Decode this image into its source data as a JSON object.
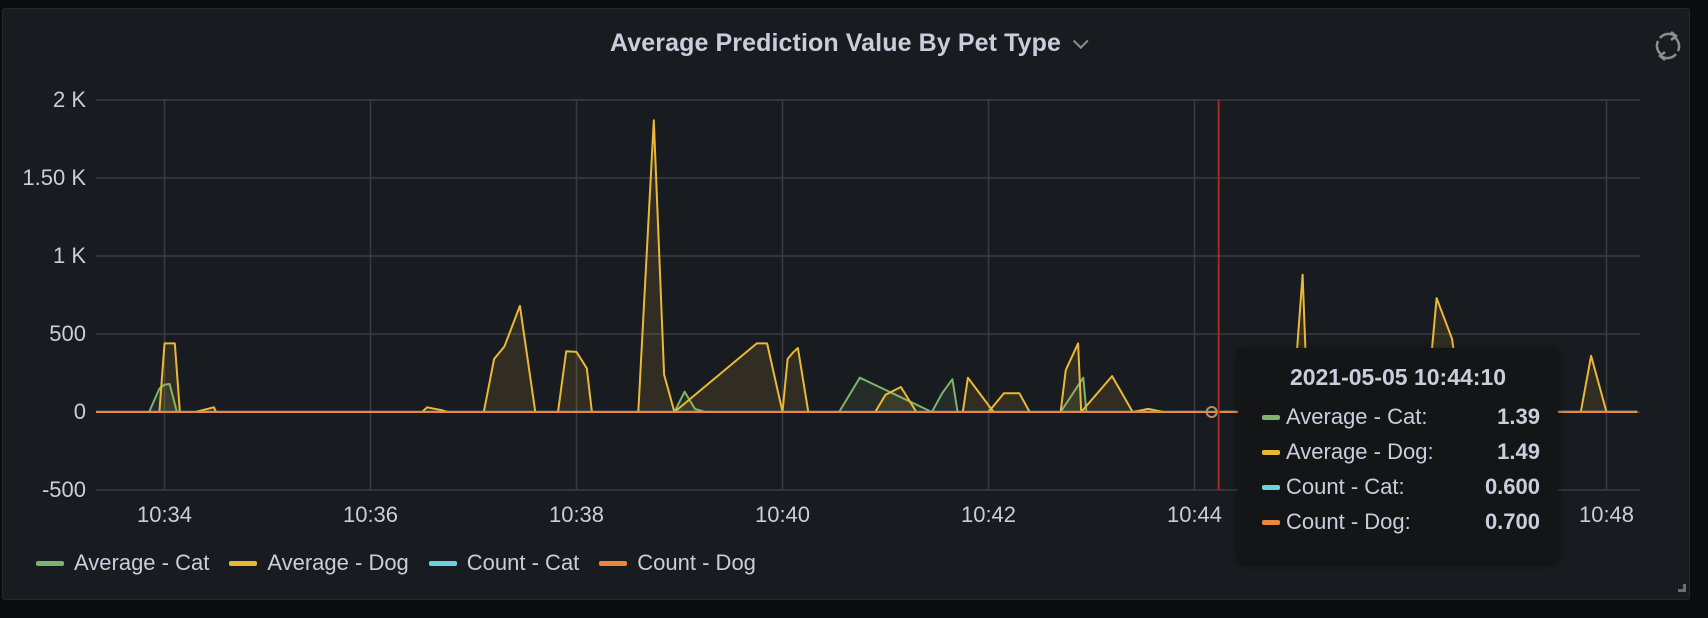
{
  "panel": {
    "title": "Average Prediction Value By Pet Type",
    "menu_icon": "chevron-down-icon",
    "refresh_icon": "refresh-icon"
  },
  "axes": {
    "y_ticks": [
      {
        "label": "2 K",
        "value": 2000
      },
      {
        "label": "1.50 K",
        "value": 1500
      },
      {
        "label": "1 K",
        "value": 1000
      },
      {
        "label": "500",
        "value": 500
      },
      {
        "label": "0",
        "value": 0
      },
      {
        "label": "-500",
        "value": -500
      }
    ],
    "x_ticks": [
      {
        "label": "10:34",
        "minute": 34
      },
      {
        "label": "10:36",
        "minute": 36
      },
      {
        "label": "10:38",
        "minute": 38
      },
      {
        "label": "10:40",
        "minute": 40
      },
      {
        "label": "10:42",
        "minute": 42
      },
      {
        "label": "10:44",
        "minute": 44
      },
      {
        "label": "10:48",
        "minute": 48
      }
    ]
  },
  "legend": [
    {
      "label": "Average - Cat",
      "color": "#7eb26d"
    },
    {
      "label": "Average - Dog",
      "color": "#eab839"
    },
    {
      "label": "Count - Cat",
      "color": "#6ed0e0"
    },
    {
      "label": "Count - Dog",
      "color": "#ef843c"
    }
  ],
  "tooltip": {
    "time": "2021-05-05 10:44:10",
    "rows": [
      {
        "label": "Average - Cat:",
        "value": "1.39",
        "color": "#7eb26d"
      },
      {
        "label": "Average - Dog:",
        "value": "1.49",
        "color": "#eab839"
      },
      {
        "label": "Count - Cat:",
        "value": "0.600",
        "color": "#6ed0e0"
      },
      {
        "label": "Count - Dog:",
        "value": "0.700",
        "color": "#ef843c"
      }
    ]
  },
  "chart_data": {
    "type": "line",
    "title": "Average Prediction Value By Pet Type",
    "xlabel": "",
    "ylabel": "",
    "ylim": [
      -500,
      2000
    ],
    "xlim": [
      "10:33:20",
      "10:48:20"
    ],
    "grid": true,
    "legend_position": "bottom",
    "x_unit": "minutes past 10:00",
    "hover_time": "10:44:10",
    "series": [
      {
        "name": "Average - Cat",
        "color": "#7eb26d",
        "points": [
          [
            33.3,
            0
          ],
          [
            33.85,
            0
          ],
          [
            33.95,
            150
          ],
          [
            34.0,
            175
          ],
          [
            34.05,
            180
          ],
          [
            34.12,
            0
          ],
          [
            38.95,
            0
          ],
          [
            39.05,
            130
          ],
          [
            39.15,
            20
          ],
          [
            39.25,
            0
          ],
          [
            40.55,
            0
          ],
          [
            40.75,
            220
          ],
          [
            41.45,
            0
          ],
          [
            41.55,
            120
          ],
          [
            41.65,
            210
          ],
          [
            41.7,
            0
          ],
          [
            42.7,
            0
          ],
          [
            42.92,
            220
          ],
          [
            42.95,
            0
          ],
          [
            48.3,
            1
          ]
        ]
      },
      {
        "name": "Average - Dog",
        "color": "#eab839",
        "points": [
          [
            33.3,
            0
          ],
          [
            33.95,
            0
          ],
          [
            34.0,
            440
          ],
          [
            34.1,
            440
          ],
          [
            34.15,
            0
          ],
          [
            34.3,
            0
          ],
          [
            34.48,
            30
          ],
          [
            34.5,
            0
          ],
          [
            36.5,
            0
          ],
          [
            36.55,
            30
          ],
          [
            36.7,
            10
          ],
          [
            36.75,
            0
          ],
          [
            37.1,
            0
          ],
          [
            37.2,
            340
          ],
          [
            37.3,
            420
          ],
          [
            37.45,
            680
          ],
          [
            37.6,
            0
          ],
          [
            37.82,
            0
          ],
          [
            37.9,
            390
          ],
          [
            38.0,
            385
          ],
          [
            38.1,
            280
          ],
          [
            38.15,
            0
          ],
          [
            38.6,
            0
          ],
          [
            38.75,
            1870
          ],
          [
            38.85,
            240
          ],
          [
            38.95,
            0
          ],
          [
            39.75,
            440
          ],
          [
            39.85,
            440
          ],
          [
            40.0,
            0
          ],
          [
            40.05,
            340
          ],
          [
            40.1,
            380
          ],
          [
            40.15,
            410
          ],
          [
            40.25,
            0
          ],
          [
            40.9,
            0
          ],
          [
            41.0,
            110
          ],
          [
            41.15,
            160
          ],
          [
            41.3,
            0
          ],
          [
            41.75,
            0
          ],
          [
            41.8,
            220
          ],
          [
            42.05,
            0
          ],
          [
            42.0,
            0
          ],
          [
            42.15,
            120
          ],
          [
            42.3,
            120
          ],
          [
            42.4,
            0
          ],
          [
            42.7,
            0
          ],
          [
            42.75,
            270
          ],
          [
            42.87,
            440
          ],
          [
            42.9,
            0
          ],
          [
            43.2,
            230
          ],
          [
            43.4,
            0
          ],
          [
            43.55,
            20
          ],
          [
            43.7,
            0
          ],
          [
            44.2,
            0
          ],
          [
            44.95,
            0
          ],
          [
            45.05,
            880
          ],
          [
            45.1,
            0
          ],
          [
            45.5,
            0
          ],
          [
            46.25,
            0
          ],
          [
            46.35,
            730
          ],
          [
            46.5,
            470
          ],
          [
            46.6,
            0
          ],
          [
            47.75,
            0
          ],
          [
            47.85,
            360
          ],
          [
            48.0,
            0
          ],
          [
            48.3,
            0
          ]
        ]
      },
      {
        "name": "Count - Cat",
        "color": "#6ed0e0",
        "points": [
          [
            33.3,
            0.6
          ],
          [
            48.3,
            0.6
          ]
        ]
      },
      {
        "name": "Count - Dog",
        "color": "#ef843c",
        "points": [
          [
            33.3,
            0.7
          ],
          [
            48.3,
            0.7
          ]
        ]
      }
    ]
  }
}
